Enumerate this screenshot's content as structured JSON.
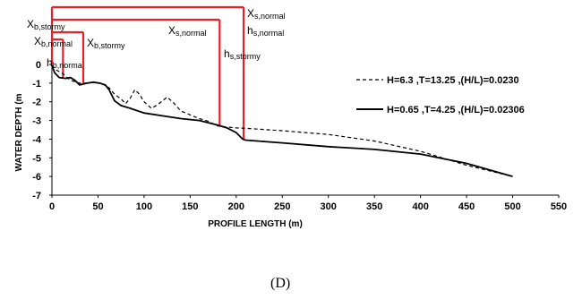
{
  "panel_label": "(D)",
  "colors": {
    "annotation": "#e8202a",
    "series": "#000000"
  },
  "chart_data": {
    "type": "line",
    "xlabel": "PROFILE LENGTH (m)",
    "ylabel": "WATER DEPTH (m",
    "xlim": [
      0,
      550
    ],
    "ylim": [
      -7,
      0
    ],
    "x_ticks": [
      0,
      50,
      100,
      150,
      200,
      250,
      300,
      350,
      400,
      450,
      500,
      550
    ],
    "y_ticks": [
      0,
      -1,
      -2,
      -3,
      -4,
      -5,
      -6,
      -7
    ],
    "grid": false,
    "legend_position": "right",
    "series": [
      {
        "name": "H=6.3 ,T=13.25 ,(H/L)=0.0230",
        "style": "dashed",
        "points": [
          [
            0,
            -0.05
          ],
          [
            5,
            -0.3
          ],
          [
            12,
            -0.5
          ],
          [
            20,
            -0.85
          ],
          [
            30,
            -1.0
          ],
          [
            38,
            -1.0
          ],
          [
            45,
            -0.95
          ],
          [
            55,
            -1.05
          ],
          [
            62,
            -1.25
          ],
          [
            68,
            -1.6
          ],
          [
            75,
            -1.85
          ],
          [
            80,
            -2.1
          ],
          [
            85,
            -1.8
          ],
          [
            90,
            -1.35
          ],
          [
            95,
            -1.6
          ],
          [
            100,
            -2.0
          ],
          [
            108,
            -2.35
          ],
          [
            115,
            -2.15
          ],
          [
            125,
            -1.75
          ],
          [
            132,
            -2.05
          ],
          [
            140,
            -2.5
          ],
          [
            150,
            -2.7
          ],
          [
            160,
            -2.9
          ],
          [
            170,
            -3.05
          ],
          [
            180,
            -3.3
          ],
          [
            190,
            -3.35
          ],
          [
            200,
            -3.4
          ],
          [
            210,
            -3.42
          ],
          [
            250,
            -3.55
          ],
          [
            300,
            -3.75
          ],
          [
            350,
            -4.1
          ],
          [
            400,
            -4.65
          ],
          [
            450,
            -5.4
          ],
          [
            500,
            -6.0
          ]
        ]
      },
      {
        "name": "H=0.65 ,T=4.25 ,(H/L)=0.02306",
        "style": "solid",
        "points": [
          [
            0,
            -0.05
          ],
          [
            3,
            -0.45
          ],
          [
            8,
            -0.7
          ],
          [
            15,
            -0.75
          ],
          [
            20,
            -0.7
          ],
          [
            25,
            -0.85
          ],
          [
            30,
            -1.1
          ],
          [
            38,
            -1.0
          ],
          [
            45,
            -0.95
          ],
          [
            52,
            -1.0
          ],
          [
            58,
            -1.1
          ],
          [
            62,
            -1.35
          ],
          [
            68,
            -1.95
          ],
          [
            75,
            -2.2
          ],
          [
            85,
            -2.35
          ],
          [
            100,
            -2.6
          ],
          [
            120,
            -2.75
          ],
          [
            140,
            -2.9
          ],
          [
            160,
            -3.0
          ],
          [
            180,
            -3.25
          ],
          [
            190,
            -3.4
          ],
          [
            200,
            -3.65
          ],
          [
            207,
            -4.0
          ],
          [
            210,
            -4.05
          ],
          [
            250,
            -4.2
          ],
          [
            300,
            -4.4
          ],
          [
            350,
            -4.55
          ],
          [
            400,
            -4.8
          ],
          [
            450,
            -5.3
          ],
          [
            500,
            -6.0
          ]
        ]
      }
    ],
    "annotations": [
      {
        "id": "xb-normal",
        "main": "X",
        "sub": "b,normal",
        "x": 12
      },
      {
        "id": "xb-stormy",
        "main": "X",
        "sub": "b,stormy",
        "x": 34
      },
      {
        "id": "hb-normal",
        "main": "h",
        "sub": "b,norma",
        "x": 12
      },
      {
        "id": "xs-normal",
        "main": "X",
        "sub": "s,normal",
        "x": 208
      },
      {
        "id": "xs-stormy",
        "main": "X",
        "sub": "s,normal",
        "x": 182
      },
      {
        "id": "hs-normal",
        "main": "h",
        "sub": "s,normal",
        "x": 208
      },
      {
        "id": "hs-stormy",
        "main": "h",
        "sub": "s,stormy",
        "x": 182
      }
    ]
  }
}
